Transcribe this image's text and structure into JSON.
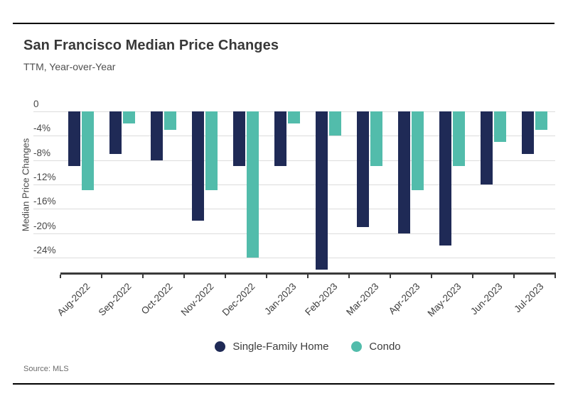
{
  "header": {
    "title": "San Francisco Median Price Changes",
    "subtitle": "TTM, Year-over-Year"
  },
  "chart_data": {
    "type": "bar",
    "title": "San Francisco Median Price Changes",
    "subtitle": "TTM, Year-over-Year",
    "xlabel": "",
    "ylabel": "Median Price Changes",
    "categories": [
      "Aug-2022",
      "Sep-2022",
      "Oct-2022",
      "Nov-2022",
      "Dec-2022",
      "Jan-2023",
      "Feb-2023",
      "Mar-2023",
      "Apr-2023",
      "May-2023",
      "Jun-2023",
      "Jul-2023"
    ],
    "series": [
      {
        "name": "Single-Family Home",
        "color": "#1f2a56",
        "values": [
          -9,
          -7,
          -8,
          -18,
          -9,
          -9,
          -26,
          -19,
          -20,
          -22,
          -12,
          -7
        ]
      },
      {
        "name": "Condo",
        "color": "#52bcab",
        "values": [
          -13,
          -2,
          -3,
          -13,
          -24,
          -2,
          -4,
          -9,
          -13,
          -9,
          -5,
          -3
        ]
      }
    ],
    "ylim": [
      -26.7,
      0
    ],
    "ytick_step": 4,
    "ytick_labels": [
      "0",
      "-4%",
      "-8%",
      "-12%",
      "-16%",
      "-20%",
      "-24%"
    ],
    "grid": "horizontal",
    "legend_position": "bottom-center"
  },
  "footer": {
    "source": "Source: MLS"
  },
  "colors": {
    "single_family": "#1f2a56",
    "condo": "#52bcab",
    "gridline": "#dcdcdc",
    "axis_line": "#3a3a3a",
    "rule": "#000000"
  }
}
